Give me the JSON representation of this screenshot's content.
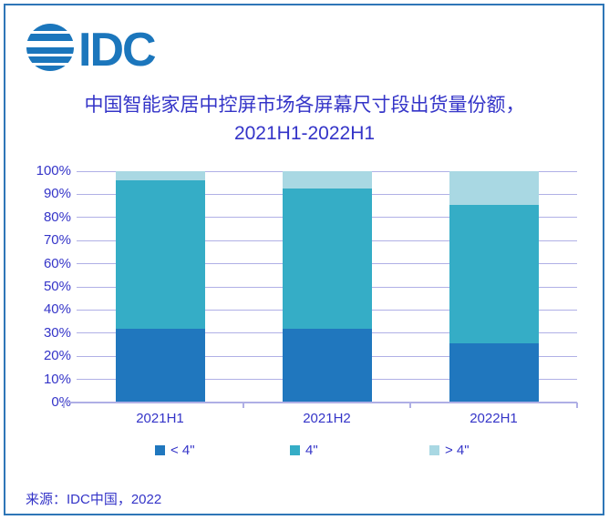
{
  "frame": {
    "border_color": "#2E76B7"
  },
  "logo": {
    "text": "IDC",
    "color": "#1B76BC"
  },
  "title": {
    "line1": "中国智能家居中控屏市场各屏幕尺寸段出货量份额，",
    "line2": "2021H1-2022H1",
    "color": "#3434C8"
  },
  "source": {
    "text": "来源：IDC中国，2022"
  },
  "chart_data": {
    "type": "bar",
    "stacked": true,
    "title": "中国智能家居中控屏市场各屏幕尺寸段出货量份额，2021H1-2022H1",
    "categories": [
      "2021H1",
      "2021H2",
      "2022H1"
    ],
    "series": [
      {
        "name": "< 4\"",
        "color": "#2077BE",
        "values": [
          32,
          32,
          25.5
        ]
      },
      {
        "name": "4\"",
        "color": "#35ADC6",
        "values": [
          64,
          60.5,
          60
        ]
      },
      {
        "name": "> 4\"",
        "color": "#A9D8E3",
        "values": [
          4,
          7.5,
          14.5
        ]
      }
    ],
    "xlabel": "",
    "ylabel": "",
    "ylim": [
      0,
      100
    ],
    "y_ticks": [
      "0%",
      "10%",
      "20%",
      "30%",
      "40%",
      "50%",
      "60%",
      "70%",
      "80%",
      "90%",
      "100%"
    ],
    "grid": "horizontal",
    "legend_position": "bottom",
    "text_color": "#3434C8",
    "gridline_color": "#B0B0E6"
  }
}
